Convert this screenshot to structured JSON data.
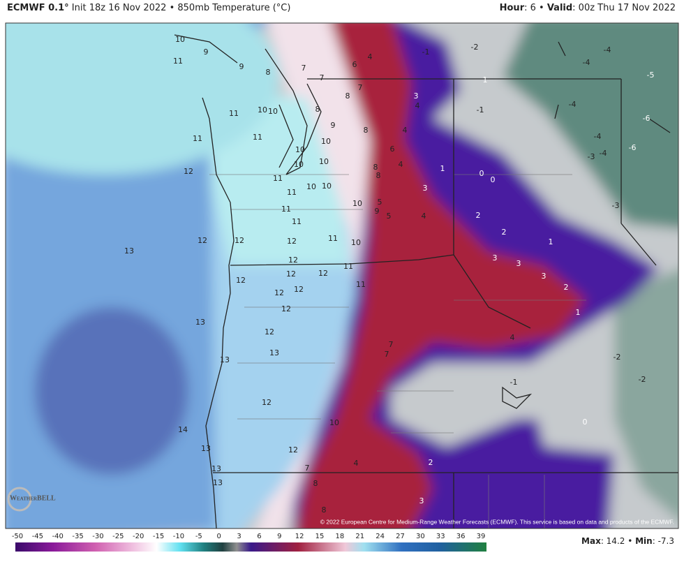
{
  "header": {
    "model": "ECMWF 0.1°",
    "info": "Init 18z 16 Nov 2022 • 850mb Temperature (°C)",
    "hour_label": "Hour",
    "hour_value": ": 6 • ",
    "valid_label": "Valid",
    "valid_value": ": 00z Thu 17 Nov 2022"
  },
  "map": {
    "contour_labels": [
      10,
      9,
      11,
      9,
      8,
      7,
      7,
      6,
      4,
      7,
      8,
      3,
      4,
      -1,
      -2,
      1,
      -1,
      -4,
      -4,
      -5,
      -4,
      -6,
      -6,
      -4,
      -4,
      -3,
      -3,
      11,
      10,
      10,
      8,
      9,
      8,
      4,
      6,
      10,
      11,
      11,
      10,
      10,
      8,
      8,
      4,
      1,
      0,
      0,
      10,
      11,
      11,
      10,
      10,
      3,
      12,
      11,
      11,
      10,
      5,
      9,
      5,
      4,
      2,
      2,
      12,
      12,
      12,
      11,
      10,
      1,
      13,
      12,
      11,
      3,
      3,
      12,
      12,
      12,
      3,
      12,
      12,
      11,
      2,
      12,
      1,
      13,
      12,
      4,
      7,
      7,
      13,
      13,
      12,
      -1,
      -2,
      -2,
      0,
      10,
      14,
      13,
      12,
      2,
      4,
      7,
      13,
      8,
      13,
      3,
      8
    ],
    "credit": "© 2022 European Centre for Medium-Range Weather Forecasts (ECMWF). This service is based on data and products of the ECMWF.",
    "logo": "WeatherBELL"
  },
  "colorbar": {
    "ticks": [
      -50,
      -45,
      -40,
      -35,
      -30,
      -25,
      -20,
      -15,
      -10,
      -5,
      0,
      3,
      6,
      9,
      12,
      15,
      18,
      21,
      24,
      27,
      30,
      33,
      36,
      39
    ]
  },
  "footer": {
    "max_label": "Max",
    "max_value": ": 14.2 • ",
    "min_label": "Min",
    "min_value": ": -7.3"
  }
}
